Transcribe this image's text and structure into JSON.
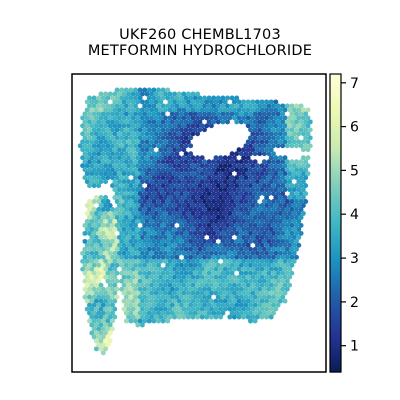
{
  "chart_data": {
    "type": "heatmap",
    "title_lines": [
      "UKF260 CHEMBL1703",
      "METFORMIN HYDROCHLORIDE"
    ],
    "colormap": "YlGnBu",
    "colorbar": {
      "range": [
        0.4,
        7.2
      ],
      "ticks": [
        1,
        2,
        3,
        4,
        5,
        6,
        7
      ],
      "tick_labels": [
        "1",
        "2",
        "3",
        "4",
        "5",
        "6",
        "7"
      ]
    },
    "colormap_stops": [
      "#081d58",
      "#253494",
      "#225ea8",
      "#1d91c0",
      "#41b6c4",
      "#7fcdbb",
      "#c7e9b4",
      "#edf8b1",
      "#ffffd9"
    ],
    "axes": {
      "x_ticks": [],
      "y_ticks": [],
      "grid": false
    },
    "summary": {
      "value_range": [
        0.5,
        7.0
      ],
      "typical_value": 2.5
    }
  }
}
